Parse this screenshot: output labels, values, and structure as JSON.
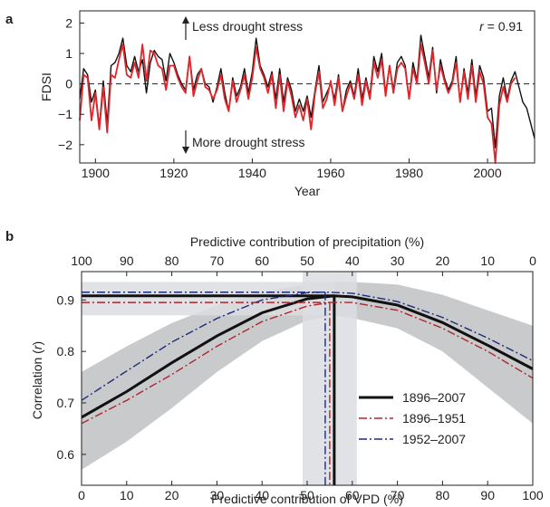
{
  "chart_data": [
    {
      "panel": "a",
      "type": "line",
      "xlabel": "Year",
      "ylabel": "FDSI",
      "xlim": [
        1896,
        2012
      ],
      "ylim": [
        -2.6,
        2.4
      ],
      "xticks": [
        1900,
        1920,
        1940,
        1960,
        1980,
        2000
      ],
      "yticks": [
        -2,
        -1,
        0,
        1,
        2
      ],
      "ytick_labels": [
        "−2",
        "−1",
        "0",
        "1",
        "2"
      ],
      "annotations": {
        "top": "Less drought stress",
        "bottom": "More drought stress",
        "corr": "r = 0.91",
        "corr_r": "r",
        "corr_value": " = 0.91"
      },
      "series": [
        {
          "color": "#111111",
          "x": [
            1896,
            1897,
            1898,
            1899,
            1900,
            1901,
            1902,
            1903,
            1904,
            1905,
            1906,
            1907,
            1908,
            1909,
            1910,
            1911,
            1912,
            1913,
            1914,
            1915,
            1916,
            1917,
            1918,
            1919,
            1920,
            1921,
            1922,
            1923,
            1924,
            1925,
            1926,
            1927,
            1928,
            1929,
            1930,
            1931,
            1932,
            1933,
            1934,
            1935,
            1936,
            1937,
            1938,
            1939,
            1940,
            1941,
            1942,
            1943,
            1944,
            1945,
            1946,
            1947,
            1948,
            1949,
            1950,
            1951,
            1952,
            1953,
            1954,
            1955,
            1956,
            1957,
            1958,
            1959,
            1960,
            1961,
            1962,
            1963,
            1964,
            1965,
            1966,
            1967,
            1968,
            1969,
            1970,
            1971,
            1972,
            1973,
            1974,
            1975,
            1976,
            1977,
            1978,
            1979,
            1980,
            1981,
            1982,
            1983,
            1984,
            1985,
            1986,
            1987,
            1988,
            1989,
            1990,
            1991,
            1992,
            1993,
            1994,
            1995,
            1996,
            1997,
            1998,
            1999,
            2000,
            2001,
            2002,
            2003,
            2004,
            2005,
            2006,
            2007,
            2008,
            2009,
            2010,
            2011,
            2012
          ],
          "y": [
            -0.5,
            0.5,
            0.3,
            -0.6,
            -0.2,
            -1.4,
            0.1,
            -1.3,
            0.6,
            0.7,
            1.0,
            1.5,
            0.6,
            0.4,
            0.9,
            0.4,
            0.8,
            -0.3,
            0.7,
            1.1,
            0.9,
            0.8,
            0.1,
            1.0,
            0.7,
            0.3,
            0.0,
            -0.2,
            0.9,
            -0.2,
            0.3,
            0.5,
            0.0,
            -0.1,
            -0.6,
            -0.1,
            0.5,
            -0.3,
            -0.9,
            0.2,
            -0.4,
            -0.1,
            0.5,
            -0.3,
            0.4,
            1.5,
            0.6,
            0.3,
            -0.1,
            0.4,
            -0.5,
            0.5,
            -0.6,
            0.2,
            -0.2,
            -0.9,
            -0.5,
            -0.9,
            -0.4,
            -1.1,
            -0.2,
            0.6,
            -0.6,
            -0.3,
            0.0,
            -0.5,
            0.3,
            -0.9,
            -0.2,
            0.1,
            -0.4,
            0.5,
            -0.5,
            0.2,
            -0.4,
            0.9,
            0.4,
            1.0,
            -0.3,
            0.6,
            -0.2,
            0.7,
            0.9,
            0.6,
            -0.5,
            0.7,
            0.1,
            1.6,
            0.9,
            0.2,
            1.2,
            -0.3,
            0.8,
            0.2,
            -0.2,
            0.1,
            0.9,
            -0.6,
            0.5,
            -0.3,
            0.8,
            -0.4,
            0.6,
            0.2,
            -0.9,
            -0.8,
            -2.1,
            -0.4,
            0.2,
            -0.5,
            0.1,
            0.4,
            -0.1,
            -0.6,
            -0.8,
            -1.3,
            -1.8
          ]
        },
        {
          "color": "#e0252b",
          "x": [
            1896,
            1897,
            1898,
            1899,
            1900,
            1901,
            1902,
            1903,
            1904,
            1905,
            1906,
            1907,
            1908,
            1909,
            1910,
            1911,
            1912,
            1913,
            1914,
            1915,
            1916,
            1917,
            1918,
            1919,
            1920,
            1921,
            1922,
            1923,
            1924,
            1925,
            1926,
            1927,
            1928,
            1929,
            1930,
            1931,
            1932,
            1933,
            1934,
            1935,
            1936,
            1937,
            1938,
            1939,
            1940,
            1941,
            1942,
            1943,
            1944,
            1945,
            1946,
            1947,
            1948,
            1949,
            1950,
            1951,
            1952,
            1953,
            1954,
            1955,
            1956,
            1957,
            1958,
            1959,
            1960,
            1961,
            1962,
            1963,
            1964,
            1965,
            1966,
            1967,
            1968,
            1969,
            1970,
            1971,
            1972,
            1973,
            1974,
            1975,
            1976,
            1977,
            1978,
            1979,
            1980,
            1981,
            1982,
            1983,
            1984,
            1985,
            1986,
            1987,
            1988,
            1989,
            1990,
            1991,
            1992,
            1993,
            1994,
            1995,
            1996,
            1997,
            1998,
            1999,
            2000,
            2001,
            2002,
            2003,
            2004,
            2005,
            2006,
            2007
          ],
          "y": [
            -1.2,
            0.3,
            0.2,
            -1.2,
            -0.3,
            -1.5,
            -0.1,
            -1.6,
            0.3,
            0.2,
            0.8,
            1.3,
            0.3,
            0.2,
            0.7,
            0.2,
            1.3,
            0.1,
            1.1,
            1.0,
            0.6,
            0.5,
            -0.2,
            0.6,
            0.6,
            0.2,
            -0.1,
            -0.3,
            0.9,
            -0.4,
            0.1,
            0.5,
            -0.1,
            -0.2,
            -0.5,
            -0.2,
            0.3,
            -0.5,
            -0.9,
            0.1,
            -0.6,
            -0.2,
            0.3,
            -0.5,
            0.2,
            1.2,
            0.5,
            0.2,
            -0.3,
            0.3,
            -0.8,
            0.3,
            -0.9,
            0.1,
            -0.4,
            -1.1,
            -0.7,
            -1.2,
            -0.5,
            -1.5,
            -0.3,
            0.4,
            -0.8,
            -0.5,
            0.1,
            -0.7,
            0.2,
            -0.9,
            -0.4,
            0.0,
            -0.5,
            0.3,
            -0.7,
            0.1,
            -0.5,
            0.7,
            0.2,
            0.8,
            -0.4,
            0.6,
            -0.3,
            0.5,
            0.7,
            0.5,
            -0.5,
            0.5,
            0.0,
            1.3,
            0.7,
            0.0,
            1.1,
            -0.2,
            0.6,
            0.1,
            -0.3,
            0.0,
            0.7,
            -0.6,
            0.4,
            -0.5,
            0.6,
            -0.6,
            0.4,
            0.0,
            -1.1,
            -1.3,
            -2.6,
            -0.7,
            -0.1,
            -0.6,
            0.0,
            0.2
          ]
        }
      ]
    },
    {
      "panel": "b",
      "type": "line",
      "xlabel": "Predictive contribution of VPD (%)",
      "x2label": "Predictive contribution of precipitation (%)",
      "ylabel": "Correlation (r)",
      "ylabel_main": "Correlation (",
      "ylabel_r": "r",
      "ylabel_close": ")",
      "xlim": [
        0,
        100
      ],
      "ylim": [
        0.54,
        0.955
      ],
      "xticks": [
        0,
        10,
        20,
        30,
        40,
        50,
        60,
        70,
        80,
        90,
        100
      ],
      "x2tick_labels": [
        "100",
        "90",
        "80",
        "70",
        "60",
        "50",
        "40",
        "30",
        "20",
        "10",
        "0"
      ],
      "yticks": [
        0.6,
        0.7,
        0.8,
        0.9
      ],
      "ytick_labels": [
        "0.6",
        "0.7",
        "0.8",
        "0.9"
      ],
      "legend": {
        "placement": "lower-right",
        "entries": [
          "1896–2007",
          "1896–1951",
          "1952–2007"
        ]
      },
      "confidence_band": {
        "color": "#c9cacc",
        "x": [
          0,
          10,
          20,
          30,
          40,
          50,
          56,
          60,
          70,
          80,
          90,
          100
        ],
        "upper": [
          0.76,
          0.81,
          0.855,
          0.89,
          0.915,
          0.93,
          0.935,
          0.935,
          0.93,
          0.91,
          0.88,
          0.85
        ],
        "lower": [
          0.57,
          0.625,
          0.69,
          0.76,
          0.82,
          0.86,
          0.87,
          0.865,
          0.845,
          0.8,
          0.73,
          0.66
        ]
      },
      "optimum_band_x": [
        49,
        61
      ],
      "optimum_band_y": [
        0.87,
        0.935
      ],
      "series": [
        {
          "name": "1896–2007",
          "color": "#111111",
          "dash": "solid",
          "x": [
            0,
            10,
            20,
            30,
            40,
            50,
            56,
            60,
            70,
            80,
            90,
            100
          ],
          "y": [
            0.672,
            0.722,
            0.778,
            0.83,
            0.875,
            0.902,
            0.908,
            0.906,
            0.89,
            0.856,
            0.812,
            0.766
          ],
          "optimum_x": 56,
          "optimum_r": 0.908
        },
        {
          "name": "1896–1951",
          "color": "#b0242e",
          "dash": "dashdot",
          "x": [
            0,
            10,
            20,
            30,
            40,
            50,
            55,
            60,
            70,
            80,
            90,
            100
          ],
          "y": [
            0.66,
            0.705,
            0.755,
            0.81,
            0.858,
            0.888,
            0.895,
            0.895,
            0.88,
            0.845,
            0.8,
            0.748
          ],
          "optimum_x": 55,
          "optimum_r": 0.895
        },
        {
          "name": "1952–2007",
          "color": "#1f2a7a",
          "dash": "dashdot",
          "x": [
            0,
            10,
            20,
            30,
            40,
            50,
            54,
            60,
            70,
            80,
            90,
            100
          ],
          "y": [
            0.705,
            0.762,
            0.818,
            0.864,
            0.9,
            0.914,
            0.915,
            0.913,
            0.897,
            0.866,
            0.826,
            0.782
          ],
          "optimum_x": 54,
          "optimum_r": 0.915
        }
      ]
    }
  ]
}
